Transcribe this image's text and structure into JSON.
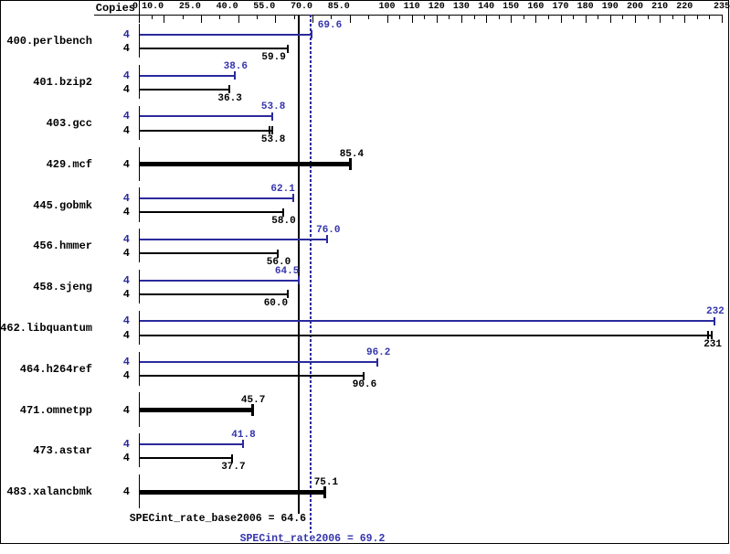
{
  "header": {
    "copies_label": "Copies"
  },
  "colors": {
    "blue": "#2a2a9d",
    "blue_text": "#3434ad",
    "black": "#000000",
    "background": "#ffffff"
  },
  "chart_data": {
    "type": "bar",
    "orientation": "horizontal",
    "title": "",
    "xlabel": "",
    "ylabel": "",
    "xlim": [
      0,
      235
    ],
    "grid": false,
    "axis_ticks": {
      "labels": [
        "0",
        "10.0",
        "25.0",
        "40.0",
        "55.0",
        "70.0",
        "85.0",
        "100",
        "110",
        "120",
        "130",
        "140",
        "150",
        "160",
        "170",
        "180",
        "190",
        "200",
        "210",
        "220",
        "235"
      ],
      "values": [
        0,
        10,
        25,
        40,
        55,
        70,
        85,
        100,
        110,
        120,
        130,
        140,
        150,
        160,
        170,
        180,
        190,
        200,
        210,
        220,
        235
      ]
    },
    "series": [
      {
        "name": "peak",
        "color_key": "blue"
      },
      {
        "name": "base",
        "color_key": "black"
      }
    ],
    "reference_lines": [
      {
        "name": "SPECint_rate_base2006",
        "value": 64.6,
        "label": "SPECint_rate_base2006 = 64.6",
        "style": "solid",
        "color_key": "black"
      },
      {
        "name": "SPECint_rate2006",
        "value": 69.2,
        "label": "SPECint_rate2006 = 69.2",
        "style": "dotted",
        "color_key": "blue"
      }
    ],
    "benchmarks": [
      {
        "name": "400.perlbench",
        "copies": 4,
        "peak": 69.6,
        "peak_label": "69.6",
        "base": 59.9,
        "base_label": "59.9",
        "peak_dx": 19,
        "base_dx": -16
      },
      {
        "name": "401.bzip2",
        "copies": 4,
        "peak": 38.6,
        "peak_label": "38.6",
        "base": 36.3,
        "base_label": "36.3"
      },
      {
        "name": "403.gcc",
        "copies": 4,
        "peak": 53.8,
        "peak_label": "53.8",
        "base": 53.8,
        "base_label": "53.8",
        "base_extra_ticks": [
          52.5
        ]
      },
      {
        "name": "429.mcf",
        "copies": 4,
        "base": 85.4,
        "base_label": "85.4",
        "base_only": true
      },
      {
        "name": "445.gobmk",
        "copies": 4,
        "peak": 62.1,
        "peak_label": "62.1",
        "base": 58.0,
        "base_label": "58.0",
        "peak_dx": -12
      },
      {
        "name": "456.hmmer",
        "copies": 4,
        "peak": 76.0,
        "peak_label": "76.0",
        "base": 56.0,
        "base_label": "56.0"
      },
      {
        "name": "458.sjeng",
        "copies": 4,
        "peak": 64.5,
        "peak_label": "64.5",
        "base": 60.0,
        "base_label": "60.0",
        "peak_dx": -14,
        "base_dx": -14
      },
      {
        "name": "462.libquantum",
        "copies": 4,
        "peak": 232,
        "peak_label": "232",
        "base": 231,
        "base_label": "231",
        "base_extra_ticks": [
          229.4
        ]
      },
      {
        "name": "464.h264ref",
        "copies": 4,
        "peak": 96.2,
        "peak_label": "96.2",
        "base": 90.6,
        "base_label": "90.6"
      },
      {
        "name": "471.omnetpp",
        "copies": 4,
        "base": 45.7,
        "base_label": "45.7",
        "base_only": true
      },
      {
        "name": "473.astar",
        "copies": 4,
        "peak": 41.8,
        "peak_label": "41.8",
        "base": 37.7,
        "base_label": "37.7"
      },
      {
        "name": "483.xalancbmk",
        "copies": 4,
        "base": 75.1,
        "base_label": "75.1",
        "base_only": true
      }
    ]
  }
}
